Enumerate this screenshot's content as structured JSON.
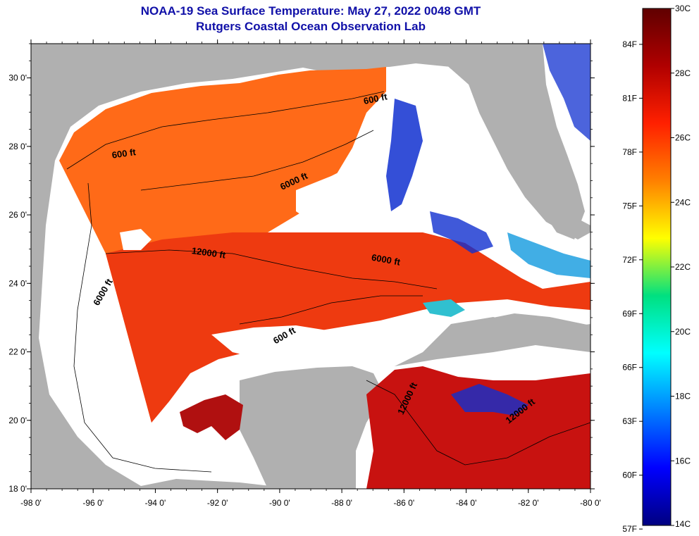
{
  "header": {
    "title": "NOAA-19 Sea Surface Temperature:  May 27, 2022 0048 GMT",
    "subtitle": "Rutgers Coastal Ocean Observation Lab"
  },
  "map": {
    "lon_range": [
      -98,
      -80
    ],
    "lat_range": [
      18,
      31
    ],
    "x_ticks": [
      "-98 0'",
      "-96 0'",
      "-94 0'",
      "-92 0'",
      "-90 0'",
      "-88 0'",
      "-86 0'",
      "-84 0'",
      "-82 0'",
      "-80 0'"
    ],
    "y_ticks": [
      "30 0'",
      "28 0'",
      "26 0'",
      "24 0'",
      "22 0'",
      "20 0'",
      "18 0'"
    ],
    "contour_labels": [
      {
        "text": "600 ft",
        "lon": -95.0,
        "lat": 27.7,
        "angle": -8
      },
      {
        "text": "600 ft",
        "lon": -86.9,
        "lat": 29.3,
        "angle": -12
      },
      {
        "text": "6000 ft",
        "lon": -89.5,
        "lat": 26.9,
        "angle": -25
      },
      {
        "text": "12000 ft",
        "lon": -92.3,
        "lat": 24.8,
        "angle": 8
      },
      {
        "text": "6000 ft",
        "lon": -86.6,
        "lat": 24.6,
        "angle": 10
      },
      {
        "text": "6000 ft",
        "lon": -95.6,
        "lat": 23.7,
        "angle": -60
      },
      {
        "text": "600 ft",
        "lon": -89.8,
        "lat": 22.4,
        "angle": -30
      },
      {
        "text": "12000 ft",
        "lon": -85.8,
        "lat": 20.6,
        "angle": -65
      },
      {
        "text": "12000 ft",
        "lon": -82.2,
        "lat": 20.2,
        "angle": -38
      }
    ]
  },
  "colorbar": {
    "celsius_labels": [
      "30C",
      "28C",
      "26C",
      "24C",
      "22C",
      "20C",
      "18C",
      "16C",
      "14C"
    ],
    "fahrenheit_labels": [
      "84F",
      "81F",
      "78F",
      "75F",
      "72F",
      "69F",
      "66F",
      "63F",
      "60F",
      "57F"
    ],
    "fahrenheit_values": [
      84,
      81,
      78,
      75,
      72,
      69,
      66,
      63,
      60,
      57
    ],
    "range_c": [
      14,
      30
    ],
    "colors": [
      "#000080",
      "#0000ff",
      "#0080ff",
      "#00ffff",
      "#00e080",
      "#ffff00",
      "#ff8000",
      "#ff2000",
      "#b00000",
      "#600000"
    ]
  },
  "palette": {
    "land": "#b0b0b0",
    "cloud": "#ffffff",
    "warm": "#ee3a10",
    "hot": "#c01010",
    "orange": "#ff6a18",
    "cold": "#1030d0",
    "title_color": "#1010a8"
  }
}
